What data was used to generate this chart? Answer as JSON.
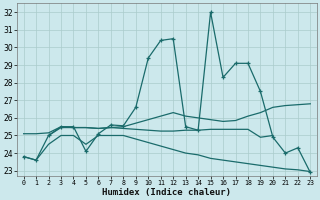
{
  "title": "",
  "xlabel": "Humidex (Indice chaleur)",
  "ylabel": "",
  "bg_color": "#cce8ec",
  "grid_color": "#aacccc",
  "line_color": "#1a6b6b",
  "xlim": [
    -0.5,
    23.5
  ],
  "ylim": [
    22.7,
    32.5
  ],
  "yticks": [
    23,
    24,
    25,
    26,
    27,
    28,
    29,
    30,
    31,
    32
  ],
  "xticks": [
    0,
    1,
    2,
    3,
    4,
    5,
    6,
    7,
    8,
    9,
    10,
    11,
    12,
    13,
    14,
    15,
    16,
    17,
    18,
    19,
    20,
    21,
    22,
    23
  ],
  "line1_x": [
    0,
    1,
    2,
    3,
    4,
    5,
    6,
    7,
    8,
    9,
    10,
    11,
    12,
    13,
    14,
    15,
    16,
    17,
    18,
    19,
    20,
    21,
    22,
    23
  ],
  "line1_y": [
    23.8,
    23.6,
    25.0,
    25.5,
    25.5,
    24.1,
    25.1,
    25.6,
    25.55,
    26.6,
    29.4,
    30.4,
    30.5,
    25.5,
    25.3,
    32.0,
    28.3,
    29.1,
    29.1,
    27.5,
    24.9,
    24.0,
    24.3,
    22.9
  ],
  "line2_x": [
    0,
    1,
    2,
    3,
    4,
    5,
    6,
    7,
    8,
    9,
    10,
    11,
    12,
    13,
    14,
    15,
    16,
    17,
    18,
    19,
    20,
    21,
    22,
    23
  ],
  "line2_y": [
    25.1,
    25.1,
    25.15,
    25.5,
    25.45,
    25.45,
    25.4,
    25.45,
    25.5,
    25.7,
    25.9,
    26.1,
    26.3,
    26.1,
    26.0,
    25.9,
    25.8,
    25.85,
    26.1,
    26.3,
    26.6,
    26.7,
    26.75,
    26.8
  ],
  "line3_x": [
    0,
    1,
    2,
    3,
    4,
    5,
    6,
    7,
    8,
    9,
    10,
    11,
    12,
    13,
    14,
    15,
    16,
    17,
    18,
    19,
    20,
    21,
    22,
    23
  ],
  "line3_y": [
    23.8,
    23.6,
    24.5,
    25.0,
    25.0,
    24.5,
    25.0,
    25.0,
    25.0,
    24.8,
    24.6,
    24.4,
    24.2,
    24.0,
    23.9,
    23.7,
    23.6,
    23.5,
    23.4,
    23.3,
    23.2,
    23.1,
    23.05,
    22.95
  ],
  "line4_x": [
    2,
    3,
    4,
    5,
    6,
    7,
    8,
    9,
    10,
    11,
    12,
    13,
    14,
    15,
    16,
    17,
    18,
    19,
    20
  ],
  "line4_y": [
    25.0,
    25.45,
    25.45,
    25.45,
    25.4,
    25.45,
    25.4,
    25.35,
    25.3,
    25.25,
    25.25,
    25.3,
    25.3,
    25.35,
    25.35,
    25.35,
    25.35,
    24.9,
    25.0
  ]
}
